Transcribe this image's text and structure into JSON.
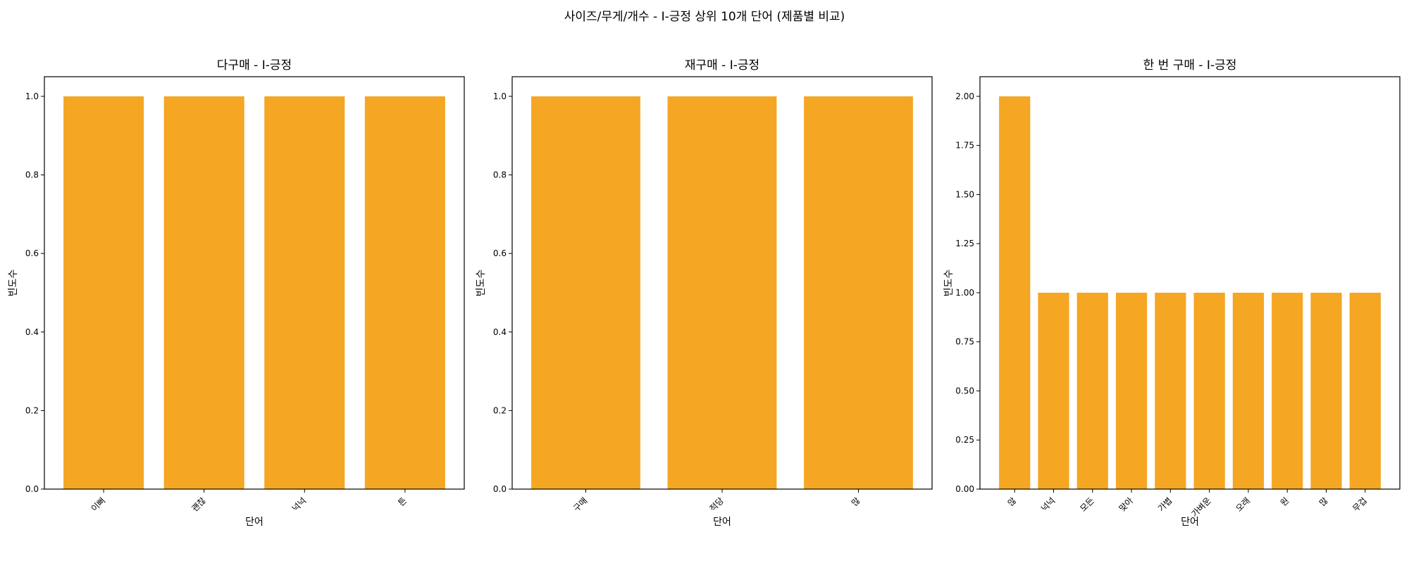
{
  "suptitle": "사이즈/무게/개수 - I-긍정 상위 10개 단어 (제품별 비교)",
  "bar_color": "#F5A623",
  "chart_data": [
    {
      "type": "bar",
      "title": "다구매 - I-긍정",
      "xlabel": "단어",
      "ylabel": "빈도수",
      "categories": [
        "이뻐",
        "괜찮",
        "넉넉",
        "튼"
      ],
      "values": [
        1,
        1,
        1,
        1
      ],
      "ylim": [
        0,
        1.05
      ],
      "yticks": [
        "0.0",
        "0.2",
        "0.4",
        "0.6",
        "0.8",
        "1.0"
      ]
    },
    {
      "type": "bar",
      "title": "재구매 - I-긍정",
      "xlabel": "단어",
      "ylabel": "빈도수",
      "categories": [
        "구매",
        "적당",
        "많"
      ],
      "values": [
        1,
        1,
        1
      ],
      "ylim": [
        0,
        1.05
      ],
      "yticks": [
        "0.0",
        "0.2",
        "0.4",
        "0.6",
        "0.8",
        "1.0"
      ]
    },
    {
      "type": "bar",
      "title": "한 번 구매 - I-긍정",
      "xlabel": "단어",
      "ylabel": "빈도수",
      "categories": [
        "않",
        "넉넉",
        "모든",
        "맞아",
        "가볍",
        "가벼운",
        "오래",
        "원",
        "많",
        "무겁"
      ],
      "values": [
        2,
        1,
        1,
        1,
        1,
        1,
        1,
        1,
        1,
        1
      ],
      "ylim": [
        0,
        2.1
      ],
      "yticks": [
        "0.00",
        "0.25",
        "0.50",
        "0.75",
        "1.00",
        "1.25",
        "1.50",
        "1.75",
        "2.00"
      ]
    }
  ]
}
